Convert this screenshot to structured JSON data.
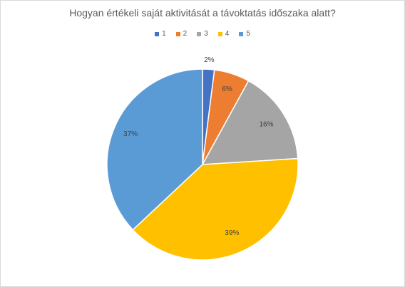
{
  "chart_data": {
    "type": "pie",
    "title": "Hogyan értékeli saját aktivitását a távoktatás időszaka alatt?",
    "categories": [
      "1",
      "2",
      "3",
      "4",
      "5"
    ],
    "values": [
      2,
      6,
      16,
      39,
      37
    ],
    "data_labels": [
      "2%",
      "6%",
      "16%",
      "39%",
      "37%"
    ],
    "colors": [
      "#4472c4",
      "#ed7d31",
      "#a5a5a5",
      "#ffc000",
      "#5b9bd5"
    ],
    "legend": "top"
  }
}
